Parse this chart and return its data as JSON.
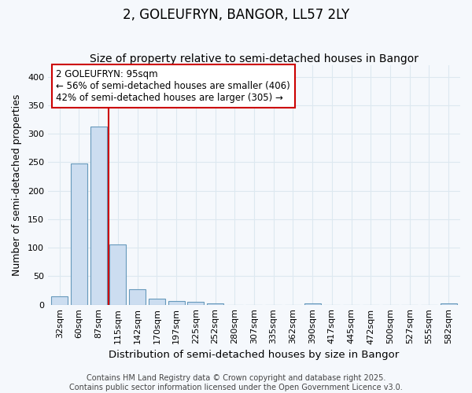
{
  "title": "2, GOLEUFRYN, BANGOR, LL57 2LY",
  "subtitle": "Size of property relative to semi-detached houses in Bangor",
  "xlabel": "Distribution of semi-detached houses by size in Bangor",
  "ylabel": "Number of semi-detached properties",
  "categories": [
    "32sqm",
    "60sqm",
    "87sqm",
    "115sqm",
    "142sqm",
    "170sqm",
    "197sqm",
    "225sqm",
    "252sqm",
    "280sqm",
    "307sqm",
    "335sqm",
    "362sqm",
    "390sqm",
    "417sqm",
    "445sqm",
    "472sqm",
    "500sqm",
    "527sqm",
    "555sqm",
    "582sqm"
  ],
  "values": [
    15,
    248,
    313,
    105,
    27,
    10,
    6,
    5,
    2,
    0,
    0,
    0,
    0,
    2,
    0,
    0,
    0,
    0,
    0,
    0,
    2
  ],
  "bar_color": "#ccddf0",
  "bar_edge_color": "#6699bb",
  "red_line_x": 2.5,
  "annotation_text_line1": "2 GOLEUFRYN: 95sqm",
  "annotation_text_line2": "← 56% of semi-detached houses are smaller (406)",
  "annotation_text_line3": "42% of semi-detached houses are larger (305) →",
  "annotation_box_color": "#ffffff",
  "annotation_box_edge_color": "#cc0000",
  "red_line_color": "#cc0000",
  "ylim": [
    0,
    420
  ],
  "yticks": [
    0,
    50,
    100,
    150,
    200,
    250,
    300,
    350,
    400
  ],
  "background_color": "#f5f8fc",
  "grid_color": "#dde8f0",
  "footer_line1": "Contains HM Land Registry data © Crown copyright and database right 2025.",
  "footer_line2": "Contains public sector information licensed under the Open Government Licence v3.0.",
  "title_fontsize": 12,
  "subtitle_fontsize": 10,
  "xlabel_fontsize": 9.5,
  "ylabel_fontsize": 9,
  "tick_fontsize": 8,
  "annotation_fontsize": 8.5,
  "footer_fontsize": 7
}
